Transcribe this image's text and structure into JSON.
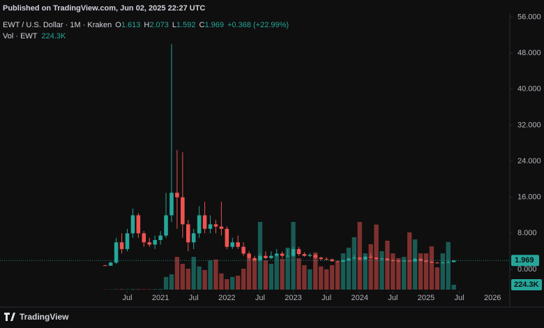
{
  "chart_data": {
    "type": "candlestick",
    "published": "Published on TradingView.com, Jun 02, 2025 22:27 UTC",
    "footer": "TradingView",
    "legend": {
      "symbol": "EWT / U.S. Dollar · 1M · Kraken",
      "fields": [
        {
          "key": "O",
          "value": 1.613
        },
        {
          "key": "H",
          "value": 2.073
        },
        {
          "key": "L",
          "value": 1.592
        },
        {
          "key": "C",
          "value": 1.969
        }
      ],
      "change": "+0.368 (+22.99%)",
      "volume_name": "Vol · EWT",
      "volume_value": "224.3K"
    },
    "volume_label": "224.3K",
    "up_color": "#26a69a",
    "down_color": "#ef5350",
    "x": [
      "2020-03",
      "2020-04",
      "2020-05",
      "2020-06",
      "2020-07",
      "2020-08",
      "2020-09",
      "2020-10",
      "2020-11",
      "2020-12",
      "2021-01",
      "2021-02",
      "2021-03",
      "2021-04",
      "2021-05",
      "2021-06",
      "2021-07",
      "2021-08",
      "2021-09",
      "2021-10",
      "2021-11",
      "2021-12",
      "2022-01",
      "2022-02",
      "2022-03",
      "2022-04",
      "2022-05",
      "2022-06",
      "2022-07",
      "2022-08",
      "2022-09",
      "2022-10",
      "2022-11",
      "2022-12",
      "2023-01",
      "2023-02",
      "2023-03",
      "2023-04",
      "2023-05",
      "2023-06",
      "2023-07",
      "2023-08",
      "2023-09",
      "2023-10",
      "2023-11",
      "2023-12",
      "2024-01",
      "2024-02",
      "2024-03",
      "2024-04",
      "2024-05",
      "2024-06",
      "2024-07",
      "2024-08",
      "2024-09",
      "2024-10",
      "2024-11",
      "2024-12",
      "2025-01",
      "2025-02",
      "2025-03",
      "2025-04",
      "2025-05",
      "2025-06"
    ],
    "open": [
      0.9,
      0.8,
      1.5,
      6,
      4.5,
      8,
      12,
      8,
      6,
      5.5,
      6.5,
      7.5,
      12,
      17,
      16,
      10,
      6,
      8,
      12,
      9,
      10,
      9.5,
      9,
      5,
      6,
      5,
      3.5,
      2.5,
      2,
      3,
      2.5,
      3,
      3.5,
      3,
      3,
      4.5,
      3.4,
      3,
      3.2,
      2.6,
      2.3,
      2.2,
      1.8,
      1.7,
      2,
      2.4,
      2.6,
      2.2,
      2.8,
      2.6,
      2.3,
      2.4,
      2,
      1.9,
      1.8,
      1.9,
      1.75,
      2.3,
      1.9,
      1.7,
      1.5,
      1.4,
      1.5,
      1.613
    ],
    "high": [
      1,
      1.7,
      7,
      8,
      9,
      13.5,
      12.5,
      8.5,
      7,
      7.5,
      8.5,
      17,
      50,
      26.5,
      26,
      11,
      9,
      14,
      15,
      12,
      11,
      15,
      9.5,
      7,
      7.5,
      6,
      4,
      3,
      3.5,
      4,
      4,
      4.5,
      4,
      4.5,
      5,
      5,
      3.8,
      3.6,
      3.4,
      2.8,
      2.7,
      2.4,
      2,
      2.1,
      2.6,
      3.2,
      2.8,
      2.9,
      3.6,
      2.7,
      2.6,
      2.5,
      2.3,
      2.1,
      2,
      2,
      2.6,
      2.5,
      2.1,
      1.8,
      1.6,
      1.7,
      1.9,
      2.073
    ],
    "low": [
      0.8,
      0.8,
      1.2,
      3.5,
      4,
      7,
      7,
      5,
      5,
      4.5,
      5.5,
      7,
      10.5,
      9,
      7,
      4,
      4.5,
      7,
      8,
      8,
      8,
      7.5,
      4.5,
      4.5,
      4.5,
      3,
      2,
      1.8,
      1.8,
      2.3,
      2.3,
      2.8,
      2.5,
      2.8,
      2.8,
      3,
      2.8,
      2.7,
      2.4,
      2,
      2,
      1.7,
      1.6,
      1.6,
      1.9,
      2.2,
      2,
      2.1,
      2.5,
      2.1,
      2.1,
      1.9,
      1.8,
      1.6,
      1.7,
      1.7,
      1.7,
      1.8,
      1.6,
      1.4,
      1.3,
      1.3,
      1.4,
      1.592
    ],
    "close": [
      0.8,
      1.5,
      6,
      4.5,
      8,
      12,
      8,
      6,
      5.5,
      6.5,
      7.5,
      12,
      17,
      16,
      10,
      6,
      8,
      12,
      9,
      10,
      9.5,
      9,
      5,
      6,
      5,
      3.5,
      2.5,
      2,
      3,
      2.5,
      3,
      3.5,
      3,
      3,
      4.5,
      3.4,
      3,
      3.2,
      2.6,
      2.3,
      2.2,
      1.8,
      1.7,
      2,
      2.4,
      2.6,
      2.2,
      2.8,
      2.6,
      2.3,
      2.4,
      2,
      1.9,
      1.8,
      1.9,
      1.75,
      2.3,
      1.9,
      1.7,
      1.5,
      1.4,
      1.5,
      1.601,
      1.969
    ],
    "volume": [
      10,
      12,
      20,
      25,
      20,
      30,
      25,
      20,
      20,
      25,
      30,
      580,
      700,
      1500,
      1180,
      960,
      1500,
      1060,
      900,
      1340,
      1380,
      740,
      480,
      580,
      640,
      960,
      1440,
      1380,
      3100,
      1340,
      1180,
      1540,
      1410,
      1920,
      3100,
      1440,
      1120,
      930,
      1700,
      1060,
      930,
      1120,
      1280,
      1660,
      1920,
      2400,
      3100,
      1660,
      2080,
      2980,
      1760,
      2240,
      1660,
      1440,
      1500,
      2620,
      2300,
      1660,
      1660,
      1980,
      1020,
      1660,
      2180,
      224.3
    ],
    "xlim": [
      "2018-08",
      "2026-04"
    ],
    "xticks": [
      {
        "value": "2020-07",
        "label": "Jul"
      },
      {
        "value": "2021-01",
        "label": "2021"
      },
      {
        "value": "2021-07",
        "label": "Jul"
      },
      {
        "value": "2022-01",
        "label": "2022"
      },
      {
        "value": "2022-07",
        "label": "Jul"
      },
      {
        "value": "2023-01",
        "label": "2023"
      },
      {
        "value": "2023-07",
        "label": "Jul"
      },
      {
        "value": "2024-01",
        "label": "2024"
      },
      {
        "value": "2024-07",
        "label": "Jul"
      },
      {
        "value": "2025-01",
        "label": "2025"
      },
      {
        "value": "2025-07",
        "label": "Jul"
      },
      {
        "value": "2026-01",
        "label": "2026"
      }
    ],
    "ylim": [
      -4.5,
      56.7
    ],
    "yticks": [
      {
        "value": 0,
        "label": "0.000"
      },
      {
        "value": 8,
        "label": "8.000"
      },
      {
        "value": 16,
        "label": "16.000"
      },
      {
        "value": 24,
        "label": "24.000"
      },
      {
        "value": 32,
        "label": "32.000"
      },
      {
        "value": 40,
        "label": "40.000"
      },
      {
        "value": 48,
        "label": "48.000"
      },
      {
        "value": 56,
        "label": "56.000"
      }
    ]
  }
}
